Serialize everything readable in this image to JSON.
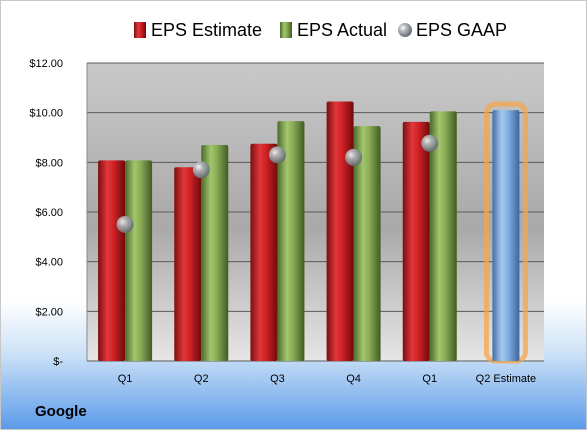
{
  "company": "Google",
  "chart_data": {
    "type": "bar",
    "categories": [
      "Q1",
      "Q2",
      "Q3",
      "Q4",
      "Q1",
      "Q2 Estimate"
    ],
    "series": [
      {
        "name": "EPS Estimate",
        "color": "#c0181b",
        "values": [
          8.08,
          7.8,
          8.75,
          10.45,
          9.63,
          null
        ]
      },
      {
        "name": "EPS Actual",
        "color": "#7da44a",
        "values": [
          8.08,
          8.7,
          9.66,
          9.46,
          10.05,
          10.1
        ]
      },
      {
        "name": "EPS GAAP",
        "color": "#9aa0a6",
        "marker": "sphere",
        "values": [
          5.5,
          7.7,
          8.3,
          8.2,
          8.77,
          null
        ]
      }
    ],
    "estimate_bar": {
      "category_index": 5,
      "color": "#7aaee0",
      "glow": "#f4a64b"
    },
    "y_ticks": [
      "$-",
      "$2.00",
      "$4.00",
      "$6.00",
      "$8.00",
      "$10.00",
      "$12.00"
    ],
    "ylim": [
      0,
      12
    ],
    "grid": true,
    "legend_position": "top"
  }
}
